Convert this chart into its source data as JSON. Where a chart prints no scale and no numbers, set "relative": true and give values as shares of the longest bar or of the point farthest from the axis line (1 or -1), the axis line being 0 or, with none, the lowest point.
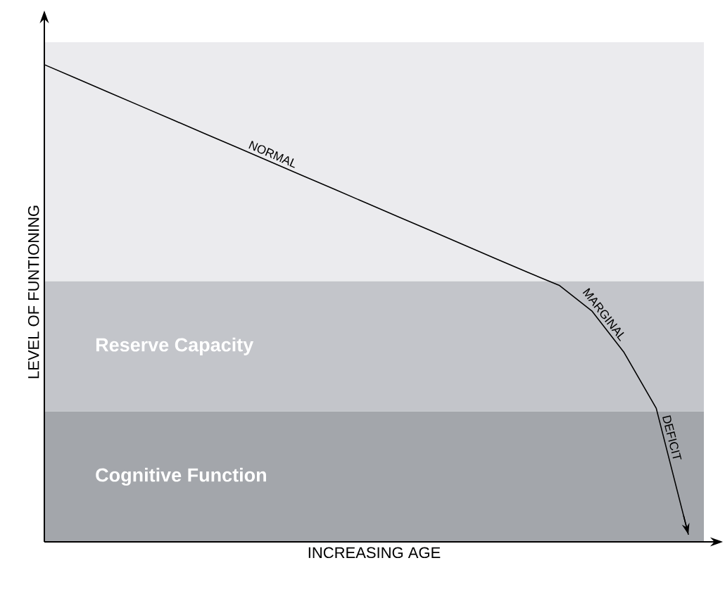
{
  "chart_data": {
    "type": "line",
    "relative": true,
    "xlabel": "INCREASING AGE",
    "ylabel": "LEVEL OF FUNTIONING",
    "categories": [
      null,
      null,
      null,
      null,
      null,
      null,
      null,
      null,
      null,
      null,
      null,
      null,
      null,
      null,
      null,
      null,
      null,
      null,
      null,
      null,
      null
    ],
    "values": [
      1,
      0.971,
      0.942,
      0.913,
      0.884,
      0.855,
      0.826,
      0.797,
      0.768,
      0.739,
      0.71,
      0.681,
      0.652,
      0.623,
      0.594,
      0.565,
      0.537,
      0.484,
      0.397,
      0.28,
      0.015
    ],
    "color": "#000000",
    "bands": [
      {
        "axis": "y",
        "from": 0.546,
        "to": 1.047,
        "label": null,
        "color": "#ebebee"
      },
      {
        "axis": "y",
        "from": 0.273,
        "to": 0.546,
        "label": "Reserve Capacity",
        "color": "#c3c5ca"
      },
      {
        "axis": "y",
        "from": 0,
        "to": 0.273,
        "label": "Cognitive Function",
        "color": "#a3a6ab"
      }
    ],
    "annotations": [
      "NORMAL",
      "MARGINAL",
      "DEFICIT"
    ]
  }
}
